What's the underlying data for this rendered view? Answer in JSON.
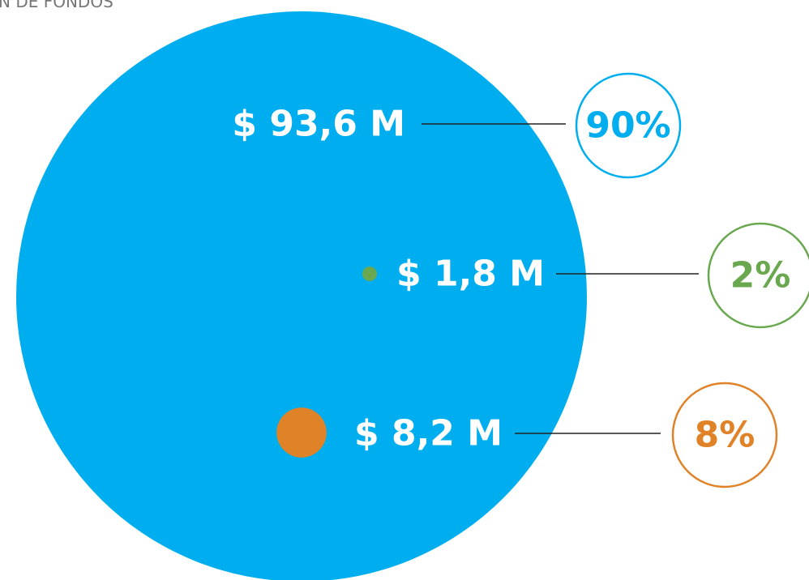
{
  "chart_data": {
    "type": "bubble",
    "title": "N DE FONDOS",
    "values": [
      93.6,
      1.8,
      8.2
    ],
    "value_labels": [
      "$ 93,6 M",
      "$ 1,8 M",
      "$ 8,2 M"
    ],
    "percents": [
      90,
      2,
      8
    ],
    "percent_labels": [
      "90%",
      "2%",
      "8%"
    ],
    "colors": [
      "#00aeef",
      "#6aa84f",
      "#e08228"
    ]
  }
}
